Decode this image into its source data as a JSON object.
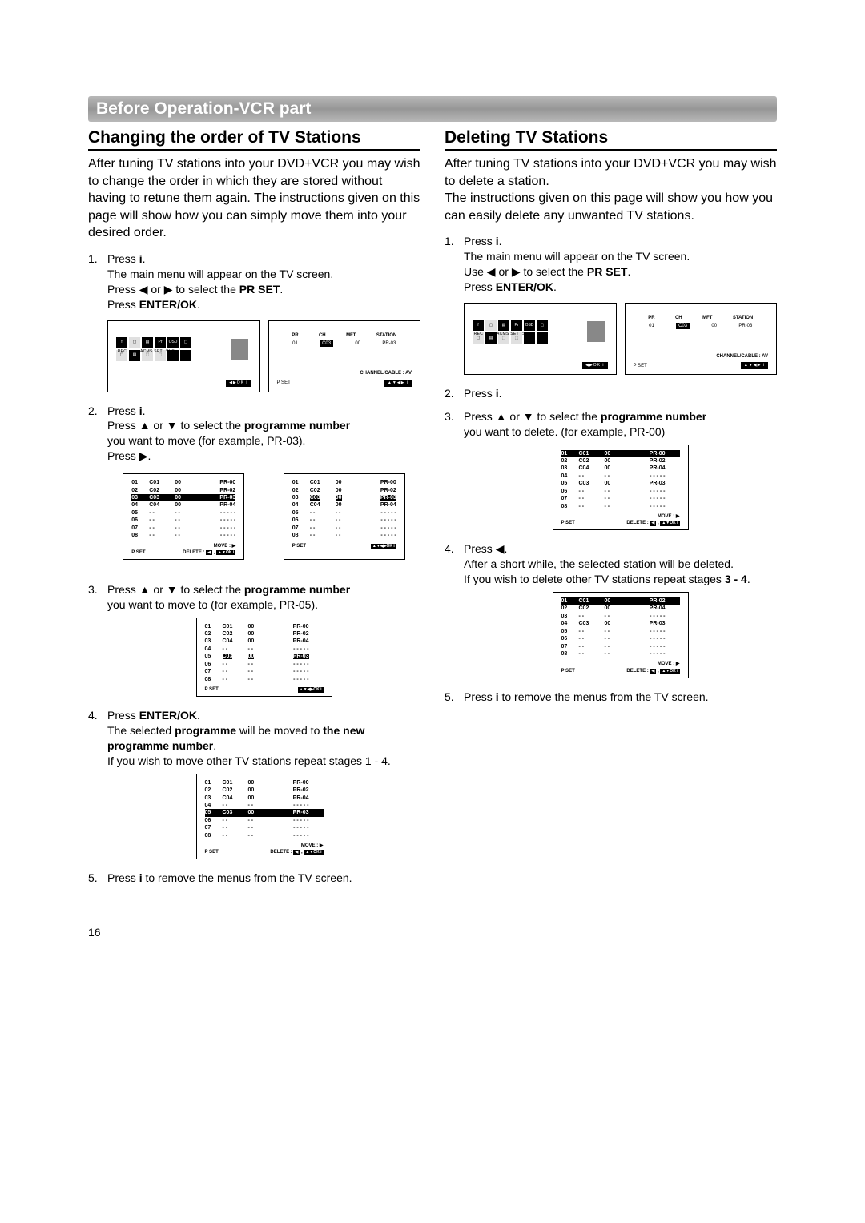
{
  "section_title": "Before Operation-VCR part",
  "page_number": "16",
  "icons": {
    "up": "▲",
    "down": "▼",
    "left": "◀",
    "right": "▶"
  },
  "left": {
    "heading": "Changing the order of TV Stations",
    "intro": "After tuning TV stations into your DVD+VCR you may wish to change the order in which they are stored without having to retune them again. The instructions given on this page will show how you can simply move them into your desired order.",
    "s1a": "Press ",
    "s1b": "The main menu will appear on the TV screen.",
    "s1c_a": "Press ",
    "s1c_b": " or ",
    "s1c_c": " to select the ",
    "s1c_d": "PR SET",
    "s1c_e": ".",
    "s1d_a": "Press ",
    "s1d_b": "ENTER/OK",
    "s1d_c": ".",
    "s2a": "Press ",
    "s2b_a": "Press ",
    "s2b_b": " or ",
    "s2b_c": " to select the ",
    "s2b_d": "programme number",
    "s2c": "you want to move (for example, PR-03).",
    "s2d_a": "Press ",
    "s2d_b": ".",
    "s3a_a": "Press ",
    "s3a_b": " or ",
    "s3a_c": " to select the ",
    "s3a_d": "programme number",
    "s3b": "you want to move to (for example, PR-05).",
    "s4a_a": "Press ",
    "s4a_b": "ENTER/OK",
    "s4a_c": ".",
    "s4b_a": "The selected ",
    "s4b_b": "programme",
    "s4b_c": " will be moved to ",
    "s4b_d": "the new programme number",
    "s4b_e": ".",
    "s4c": "If you wish to move other TV stations repeat stages 1 - 4.",
    "s5_a": "Press ",
    "s5_b": " to remove the menus from the TV screen."
  },
  "right": {
    "heading": "Deleting TV Stations",
    "intro": "After tuning TV stations into your DVD+VCR you may wish to delete a station.\nThe instructions given on this page will show you how you can easily delete any unwanted TV stations.",
    "s1a": "Press ",
    "s1b": "The main menu will appear on the TV screen.",
    "s1c_a": "Use ",
    "s1c_b": " or ",
    "s1c_c": " to select the ",
    "s1c_d": "PR SET",
    "s1c_e": ".",
    "s1d_a": "Press ",
    "s1d_b": "ENTER/OK",
    "s1d_c": ".",
    "s2a": "Press ",
    "s3a_a": "Press ",
    "s3a_b": " or ",
    "s3a_c": " to select the ",
    "s3a_d": "programme number",
    "s3b": "you want to delete.  (for example, PR-00)",
    "s4a_a": "Press ",
    "s4a_b": ".",
    "s4b": "After a short while, the selected station will be deleted.",
    "s4c_a": "If you wish to delete other TV stations repeat stages ",
    "s4c_b": "3 - 4",
    "s4c_c": ".",
    "s5_a": "Press ",
    "s5_b": " to remove the menus from the TV screen."
  },
  "prset": {
    "hdr": [
      "PR",
      "CH",
      "MFT",
      "STATION"
    ],
    "row": [
      "01",
      "C03",
      "00",
      "PR-03"
    ],
    "cc": "CHANNEL/CABLE : AV",
    "nav": "▲▼◀▶ i",
    "pset": "P SET"
  },
  "menu": {
    "labels": [
      "REC",
      "",
      "ACMS",
      "SET",
      "SYS",
      ""
    ],
    "nav": "◀▶OK i"
  },
  "tables": {
    "move_delete": "MOVE : ▶",
    "delete": "DELETE : ◀ , ▲▼OK i",
    "nav_arrows": "▲▼◀▶OK i",
    "pset": "P SET",
    "left_t1": [
      [
        "01",
        "C01",
        "00",
        "PR-00"
      ],
      [
        "02",
        "C02",
        "00",
        "PR-02"
      ],
      [
        "03",
        "C03",
        "00",
        "PR-03"
      ],
      [
        "04",
        "C04",
        "00",
        "PR-04"
      ],
      [
        "05",
        "- -",
        "- -",
        "- - - - -"
      ],
      [
        "06",
        "- -",
        "- -",
        "- - - - -"
      ],
      [
        "07",
        "- -",
        "- -",
        "- - - - -"
      ],
      [
        "08",
        "- -",
        "- -",
        "- - - - -"
      ]
    ],
    "left_t2": [
      [
        "01",
        "C01",
        "00",
        "PR-00"
      ],
      [
        "02",
        "C02",
        "00",
        "PR-02"
      ],
      [
        "03",
        "C04",
        "00",
        "PR-04"
      ],
      [
        "04",
        "- -",
        "- -",
        "- - - - -"
      ],
      [
        "05",
        "C03",
        "00",
        "PR-03"
      ],
      [
        "06",
        "- -",
        "- -",
        "- - - - -"
      ],
      [
        "07",
        "- -",
        "- -",
        "- - - - -"
      ],
      [
        "08",
        "- -",
        "- -",
        "- - - - -"
      ]
    ],
    "left_t3": [
      [
        "01",
        "C01",
        "00",
        "PR-00"
      ],
      [
        "02",
        "C02",
        "00",
        "PR-02"
      ],
      [
        "03",
        "C04",
        "00",
        "PR-04"
      ],
      [
        "04",
        "- -",
        "- -",
        "- - - - -"
      ],
      [
        "05",
        "C03",
        "00",
        "PR-03"
      ],
      [
        "06",
        "- -",
        "- -",
        "- - - - -"
      ],
      [
        "07",
        "- -",
        "- -",
        "- - - - -"
      ],
      [
        "08",
        "- -",
        "- -",
        "- - - - -"
      ]
    ],
    "right_t1": [
      [
        "01",
        "C01",
        "00",
        "PR-00"
      ],
      [
        "02",
        "C02",
        "00",
        "PR-02"
      ],
      [
        "03",
        "C04",
        "00",
        "PR-04"
      ],
      [
        "04",
        "- -",
        "- -",
        "- - - - -"
      ],
      [
        "05",
        "C03",
        "00",
        "PR-03"
      ],
      [
        "06",
        "- -",
        "- -",
        "- - - - -"
      ],
      [
        "07",
        "- -",
        "- -",
        "- - - - -"
      ],
      [
        "08",
        "- -",
        "- -",
        "- - - - -"
      ]
    ],
    "right_t2": [
      [
        "01",
        "C01",
        "00",
        "PR-02"
      ],
      [
        "02",
        "C02",
        "00",
        "PR-04"
      ],
      [
        "03",
        "- -",
        "- -",
        "- - - - -"
      ],
      [
        "04",
        "C03",
        "00",
        "PR-03"
      ],
      [
        "05",
        "- -",
        "- -",
        "- - - - -"
      ],
      [
        "06",
        "- -",
        "- -",
        "- - - - -"
      ],
      [
        "07",
        "- -",
        "- -",
        "- - - - -"
      ],
      [
        "08",
        "- -",
        "- -",
        "- - - - -"
      ]
    ],
    "hl": {
      "left_t1": 2,
      "left_t2": 4,
      "left_t3": 4,
      "right_t1": 0,
      "right_t2": 0
    }
  },
  "i_glyph": "i"
}
